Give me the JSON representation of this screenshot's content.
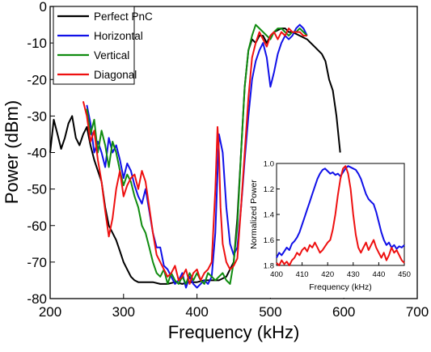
{
  "chart_data": [
    {
      "type": "line",
      "xlabel": "Frequency (kHz)",
      "ylabel": "Power (dBm)",
      "xlim": [
        200,
        700
      ],
      "ylim": [
        -80,
        0
      ],
      "xticks": [
        "200",
        "300",
        "400",
        "500",
        "600",
        "700"
      ],
      "yticks": [
        "0",
        "-10",
        "-20",
        "-30",
        "-40",
        "-50",
        "-60",
        "-70",
        "-80"
      ],
      "legend_position": "top-left",
      "series": [
        {
          "name": "Perfect PnC",
          "color": "#000000",
          "x": [
            200,
            205,
            210,
            215,
            220,
            225,
            230,
            235,
            240,
            245,
            250,
            255,
            260,
            265,
            270,
            275,
            280,
            285,
            290,
            295,
            300,
            305,
            310,
            315,
            320,
            330,
            340,
            350,
            360,
            370,
            380,
            390,
            400,
            410,
            420,
            430,
            440,
            450,
            455,
            460,
            465,
            470,
            475,
            480,
            485,
            490,
            495,
            500,
            505,
            510,
            515,
            520,
            525,
            530,
            540,
            550,
            560,
            570,
            575,
            580,
            585,
            590,
            595
          ],
          "y": [
            -40,
            -31,
            -35,
            -39,
            -36,
            -32,
            -30,
            -36,
            -38,
            -35,
            -33,
            -38,
            -42,
            -45,
            -48,
            -55,
            -60,
            -62,
            -64,
            -67,
            -70,
            -72,
            -74,
            -75,
            -75.5,
            -75.5,
            -75.5,
            -76,
            -76,
            -75.5,
            -76,
            -75.5,
            -75.5,
            -75,
            -75,
            -75,
            -74,
            -70,
            -58,
            -40,
            -22,
            -12,
            -9,
            -10,
            -8,
            -8,
            -10,
            -8,
            -7,
            -6.5,
            -6,
            -6,
            -7,
            -7,
            -8,
            -9,
            -11,
            -13,
            -15,
            -20,
            -23,
            -30,
            -40
          ]
        },
        {
          "name": "Horizontal",
          "color": "#1010e8",
          "x": [
            250,
            255,
            260,
            265,
            270,
            275,
            280,
            285,
            290,
            295,
            300,
            305,
            310,
            315,
            320,
            325,
            330,
            335,
            340,
            345,
            350,
            355,
            360,
            365,
            370,
            375,
            380,
            385,
            390,
            395,
            400,
            405,
            410,
            415,
            420,
            425,
            430,
            435,
            440,
            445,
            450,
            455,
            460,
            462,
            465,
            470,
            475,
            480,
            485,
            490,
            495,
            500,
            505,
            510,
            515,
            520,
            525,
            530,
            535,
            540,
            545,
            550
          ],
          "y": [
            -27,
            -32,
            -40,
            -37,
            -40,
            -44,
            -36,
            -40,
            -38,
            -42,
            -47,
            -43,
            -45,
            -49,
            -52,
            -54,
            -50,
            -56,
            -62,
            -66,
            -66,
            -71,
            -72,
            -74,
            -76,
            -75,
            -73,
            -77,
            -74,
            -76,
            -77,
            -76,
            -75,
            -76,
            -74,
            -62,
            -35,
            -40,
            -55,
            -65,
            -68,
            -66,
            -55,
            -50,
            -42,
            -30,
            -20,
            -15,
            -12,
            -10,
            -14,
            -22,
            -18,
            -13,
            -10,
            -8,
            -9,
            -8,
            -6,
            -5,
            -6,
            -8
          ]
        },
        {
          "name": "Vertical",
          "color": "#108c10",
          "x": [
            250,
            255,
            260,
            265,
            270,
            275,
            280,
            285,
            290,
            295,
            300,
            305,
            310,
            315,
            320,
            325,
            330,
            335,
            340,
            345,
            350,
            355,
            360,
            365,
            370,
            375,
            380,
            385,
            390,
            395,
            400,
            405,
            410,
            415,
            420,
            425,
            430,
            435,
            440,
            445,
            450,
            455,
            460,
            465,
            470,
            475,
            480,
            485,
            490,
            495,
            500,
            505,
            510,
            515,
            520,
            525,
            530,
            535,
            540,
            545,
            550
          ],
          "y": [
            -28,
            -35,
            -31,
            -40,
            -34,
            -38,
            -44,
            -37,
            -40,
            -45,
            -49,
            -46,
            -48,
            -52,
            -55,
            -60,
            -62,
            -66,
            -70,
            -73,
            -74,
            -72,
            -76,
            -73,
            -75,
            -76,
            -74,
            -76,
            -73,
            -75,
            -73,
            -75,
            -76,
            -73,
            -74,
            -75,
            -74,
            -73,
            -75,
            -76,
            -70,
            -60,
            -40,
            -22,
            -12,
            -8,
            -5,
            -6,
            -7,
            -8,
            -9,
            -7,
            -6,
            -6,
            -7,
            -8,
            -7,
            -7,
            -6,
            -7,
            -8
          ]
        },
        {
          "name": "Diagonal",
          "color": "#ee1010",
          "x": [
            245,
            250,
            255,
            260,
            265,
            270,
            275,
            280,
            285,
            290,
            295,
            300,
            305,
            310,
            315,
            320,
            325,
            330,
            335,
            340,
            345,
            350,
            355,
            360,
            365,
            370,
            375,
            380,
            385,
            390,
            395,
            400,
            405,
            410,
            415,
            420,
            425,
            428,
            430,
            432,
            435,
            440,
            445,
            450,
            455,
            460,
            465,
            470,
            475,
            480,
            485,
            490,
            495,
            500,
            505,
            510,
            515,
            520,
            525,
            530,
            535,
            540,
            545,
            550
          ],
          "y": [
            -26,
            -30,
            -37,
            -34,
            -42,
            -48,
            -56,
            -63,
            -58,
            -50,
            -45,
            -52,
            -49,
            -47,
            -46,
            -50,
            -45,
            -48,
            -55,
            -62,
            -68,
            -70,
            -72,
            -74,
            -73,
            -71,
            -75,
            -74,
            -72,
            -76,
            -73,
            -72,
            -75,
            -73,
            -72,
            -70,
            -50,
            -33,
            -40,
            -55,
            -65,
            -70,
            -72,
            -71,
            -69,
            -55,
            -40,
            -25,
            -14,
            -10,
            -7,
            -9,
            -11,
            -8,
            -7,
            -9,
            -7,
            -8,
            -6,
            -7,
            -7,
            -7,
            -8,
            -8
          ]
        }
      ]
    },
    {
      "type": "line",
      "position": "inset",
      "xlabel": "Frequency (kHz)",
      "ylabel": "Normalized Power",
      "xlim": [
        400,
        450
      ],
      "ylim": [
        1.0,
        1.8
      ],
      "y_inverted": true,
      "xticks": [
        "400",
        "410",
        "420",
        "430",
        "440",
        "450"
      ],
      "yticks": [
        "1.0",
        "1.2",
        "1.4",
        "1.6",
        "1.8"
      ],
      "series": [
        {
          "color": "#1010e8",
          "x": [
            400,
            401,
            402,
            403,
            404,
            405,
            406,
            407,
            408,
            409,
            410,
            411,
            412,
            413,
            414,
            415,
            416,
            417,
            418,
            419,
            420,
            421,
            422,
            423,
            424,
            425,
            426,
            427,
            428,
            429,
            430,
            431,
            432,
            433,
            434,
            435,
            436,
            437,
            438,
            439,
            440,
            441,
            442,
            443,
            444,
            445,
            446,
            447,
            448,
            449,
            450
          ],
          "y": [
            1.74,
            1.7,
            1.72,
            1.69,
            1.66,
            1.68,
            1.63,
            1.61,
            1.58,
            1.54,
            1.48,
            1.42,
            1.36,
            1.3,
            1.24,
            1.18,
            1.12,
            1.08,
            1.05,
            1.04,
            1.06,
            1.08,
            1.07,
            1.09,
            1.08,
            1.1,
            1.07,
            1.04,
            1.02,
            1.03,
            1.04,
            1.05,
            1.08,
            1.12,
            1.18,
            1.24,
            1.28,
            1.3,
            1.32,
            1.38,
            1.46,
            1.54,
            1.6,
            1.64,
            1.62,
            1.66,
            1.64,
            1.67,
            1.65,
            1.66,
            1.64
          ]
        },
        {
          "color": "#ee1010",
          "x": [
            400,
            401,
            402,
            403,
            404,
            405,
            406,
            407,
            408,
            409,
            410,
            411,
            412,
            413,
            414,
            415,
            416,
            417,
            418,
            419,
            420,
            421,
            422,
            423,
            424,
            425,
            426,
            427,
            428,
            429,
            430,
            431,
            432,
            433,
            434,
            435,
            436,
            437,
            438,
            439,
            440,
            441,
            442,
            443,
            444,
            445,
            446,
            447,
            448,
            449,
            450
          ],
          "y": [
            1.78,
            1.8,
            1.76,
            1.79,
            1.77,
            1.8,
            1.76,
            1.74,
            1.7,
            1.72,
            1.68,
            1.66,
            1.69,
            1.64,
            1.66,
            1.62,
            1.66,
            1.7,
            1.68,
            1.65,
            1.62,
            1.6,
            1.52,
            1.4,
            1.25,
            1.12,
            1.04,
            1.02,
            1.08,
            1.2,
            1.4,
            1.56,
            1.66,
            1.7,
            1.66,
            1.62,
            1.68,
            1.64,
            1.6,
            1.66,
            1.7,
            1.74,
            1.7,
            1.76,
            1.72,
            1.66,
            1.7,
            1.68,
            1.72,
            1.76,
            1.78
          ]
        }
      ]
    }
  ]
}
